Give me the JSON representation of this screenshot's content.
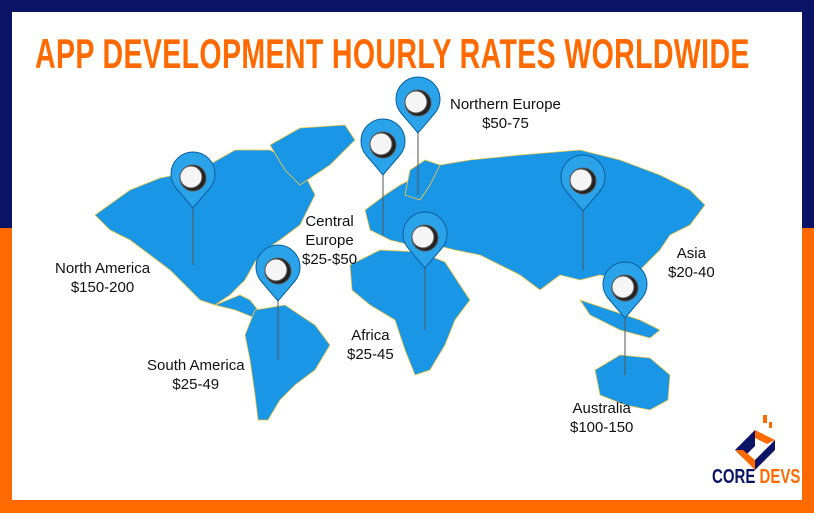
{
  "title": "APP DEVELOPMENT HOURLY RATES WORLDWIDE",
  "colors": {
    "navy": "#0a1366",
    "orange": "#ff6a00",
    "map_blue": "#1a96e6",
    "pin_blue": "#2aa3ea"
  },
  "regions": [
    {
      "name": "Northern Europe",
      "rate": "$50-75"
    },
    {
      "name": "Central Europe",
      "name_line1": "Central",
      "name_line2": "Europe",
      "rate": "$25-$50"
    },
    {
      "name": "North America",
      "rate": "$150-200"
    },
    {
      "name": "Asia",
      "rate": "$20-40"
    },
    {
      "name": "Africa",
      "rate": "$25-45"
    },
    {
      "name": "South America",
      "rate": "$25-49"
    },
    {
      "name": "Australia",
      "rate": "$100-150"
    }
  ],
  "logo": {
    "word1": "CORE",
    "word2": "DEVS"
  }
}
